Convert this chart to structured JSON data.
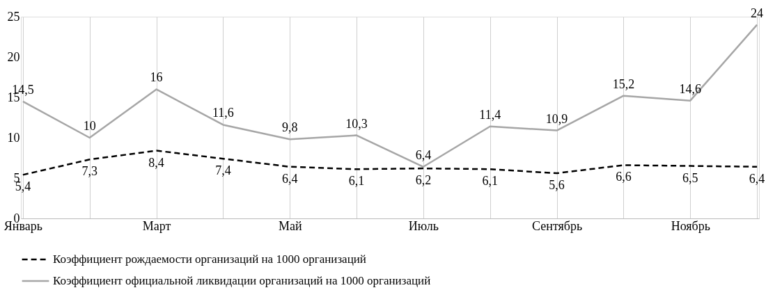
{
  "chart_data": {
    "type": "line",
    "categories": [
      "Январь",
      null,
      "Март",
      null,
      "Май",
      null,
      "Июль",
      null,
      "Сентябрь",
      null,
      "Ноябрь",
      null
    ],
    "ylim": [
      0,
      25
    ],
    "yticks": [
      0,
      5,
      10,
      15,
      20,
      25
    ],
    "grid": "x",
    "legend": "bottom",
    "series": [
      {
        "name": "Коэффициент рождаемости организаций на 1000 организаций",
        "color": "#000000",
        "line_style": "dashed",
        "values": [
          5.4,
          7.3,
          8.4,
          7.4,
          6.4,
          6.1,
          6.2,
          6.1,
          5.6,
          6.6,
          6.5,
          6.4
        ],
        "value_labels": [
          "5,4",
          "7,3",
          "8,4",
          "7,4",
          "6,4",
          "6,1",
          "6,2",
          "6,1",
          "5,6",
          "6,6",
          "6,5",
          "6,4"
        ]
      },
      {
        "name": "Коэффициент официальной ликвидации организаций на 1000 организаций",
        "color": "#a6a6a6",
        "line_style": "solid",
        "values": [
          14.5,
          10,
          16,
          11.6,
          9.8,
          10.3,
          6.4,
          11.4,
          10.9,
          15.2,
          14.6,
          24
        ],
        "value_labels": [
          "14,5",
          "10",
          "16",
          "11,6",
          "9,8",
          "10,3",
          "6,4",
          "11,4",
          "10,9",
          "15,2",
          "14,6",
          "24"
        ]
      }
    ]
  }
}
